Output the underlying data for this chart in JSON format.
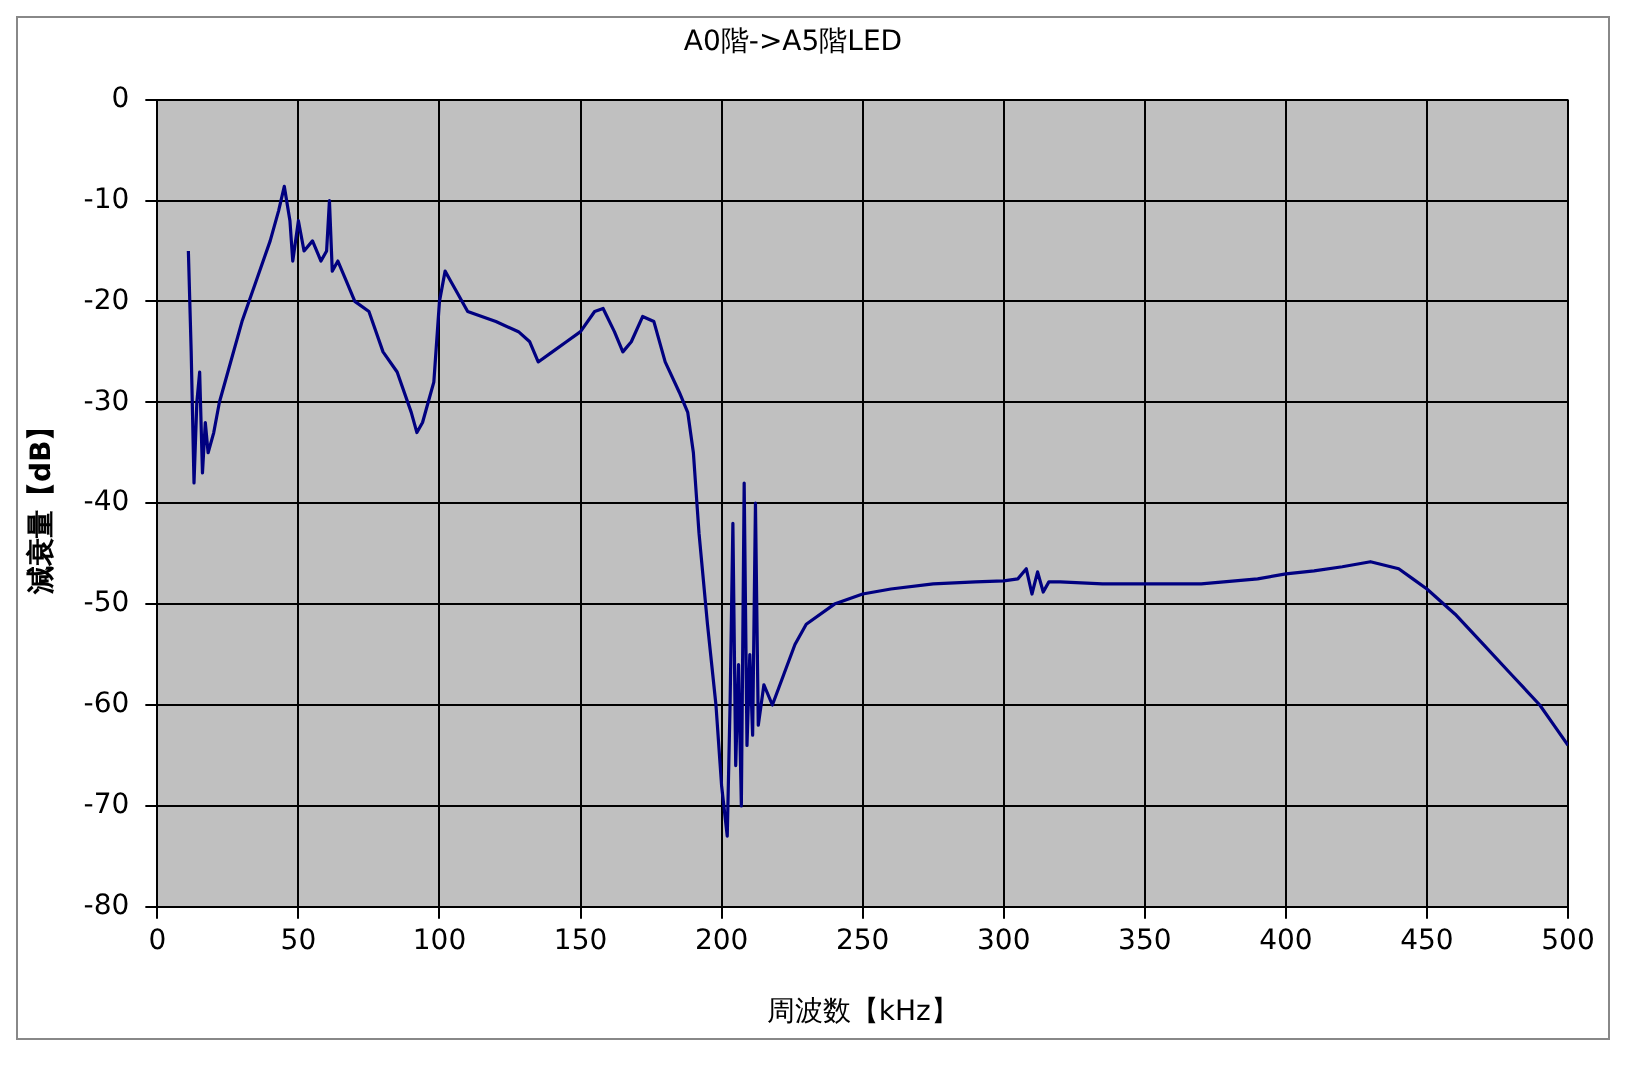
{
  "chart_data": {
    "type": "line",
    "title": "A0階->A5階LED",
    "xlabel": "周波数【kHz】",
    "ylabel": "減衰量【dB】",
    "series": [
      {
        "color": "#000080",
        "x": [
          11,
          12,
          13,
          14,
          15,
          16,
          17,
          18,
          20,
          22,
          25,
          30,
          35,
          40,
          43,
          45,
          47,
          48,
          50,
          52,
          55,
          58,
          60,
          61,
          62,
          64,
          67,
          70,
          75,
          80,
          85,
          90,
          92,
          94,
          96,
          98,
          100,
          102,
          104,
          106,
          110,
          120,
          128,
          132,
          135,
          140,
          145,
          150,
          155,
          158,
          162,
          165,
          168,
          172,
          176,
          180,
          185,
          188,
          190,
          192,
          195,
          198,
          200,
          202,
          203,
          204,
          205,
          206,
          207,
          208,
          209,
          210,
          211,
          212,
          213,
          215,
          218,
          222,
          226,
          230,
          240,
          250,
          260,
          275,
          290,
          300,
          305,
          308,
          310,
          312,
          314,
          316,
          320,
          335,
          350,
          370,
          390,
          400,
          410,
          420,
          430,
          440,
          445,
          450,
          460,
          470,
          480,
          490,
          495,
          500
        ],
        "values": [
          -15,
          -25,
          -38,
          -30,
          -27,
          -37,
          -32,
          -35,
          -33,
          -30,
          -27,
          -22,
          -18,
          -14,
          -11,
          -8.6,
          -12,
          -16,
          -12,
          -15,
          -14,
          -16,
          -15,
          -10,
          -17,
          -16,
          -18,
          -20,
          -21,
          -25,
          -27,
          -31,
          -33,
          -32,
          -30,
          -28,
          -20,
          -17,
          -18,
          -19,
          -21,
          -22,
          -23,
          -24,
          -26,
          -25,
          -24,
          -23,
          -21,
          -20.7,
          -23,
          -25,
          -24,
          -21.5,
          -22,
          -26,
          -29,
          -31,
          -35,
          -43,
          -52,
          -60,
          -68,
          -73,
          -60,
          -42,
          -66,
          -56,
          -70,
          -38,
          -64,
          -55,
          -63,
          -40,
          -62,
          -58,
          -60,
          -57,
          -54,
          -52,
          -50,
          -49,
          -48.5,
          -48,
          -47.8,
          -47.7,
          -47.5,
          -46.5,
          -49,
          -46.8,
          -48.8,
          -47.8,
          -47.8,
          -48,
          -48,
          -48,
          -47.5,
          -47,
          -46.7,
          -46.3,
          -45.8,
          -46.5,
          -47.5,
          -48.5,
          -51,
          -54,
          -57,
          -60,
          -62,
          -64
        ]
      }
    ],
    "xlim": [
      0,
      500
    ],
    "xticks": [
      0,
      50,
      100,
      150,
      200,
      250,
      300,
      350,
      400,
      450,
      500
    ],
    "ylim": [
      -80,
      0
    ],
    "yticks": [
      -80,
      -70,
      -60,
      -50,
      -40,
      -30,
      -20,
      -10,
      0
    ],
    "grid": true,
    "legend": false,
    "marker": "none",
    "line_style": "solid"
  }
}
